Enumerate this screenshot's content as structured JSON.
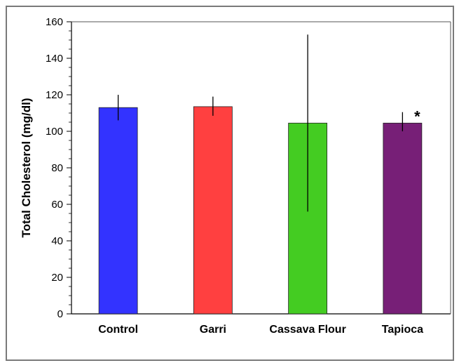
{
  "chart_data": {
    "type": "bar",
    "title": "",
    "xlabel": "",
    "ylabel": "Total Cholesterol (mg/dl)",
    "ylim": [
      0,
      160
    ],
    "yticks": [
      0,
      20,
      40,
      60,
      80,
      100,
      120,
      140,
      160
    ],
    "ytick_labels": [
      "0",
      "20",
      "40",
      "60",
      "80",
      "100",
      "120",
      "140",
      "160"
    ],
    "categories": [
      "Control",
      "Garri",
      "Cassava Flour",
      "Tapioca"
    ],
    "values": [
      113,
      113.5,
      104.5,
      104.5
    ],
    "error_low": [
      106,
      108.5,
      56,
      100
    ],
    "error_high": [
      120,
      119,
      153,
      110.5
    ],
    "colors": [
      "#3333ff",
      "#ff4040",
      "#44cc22",
      "#771f77"
    ],
    "annotations": [
      {
        "category": "Tapioca",
        "text": "*"
      }
    ],
    "grid": false
  }
}
